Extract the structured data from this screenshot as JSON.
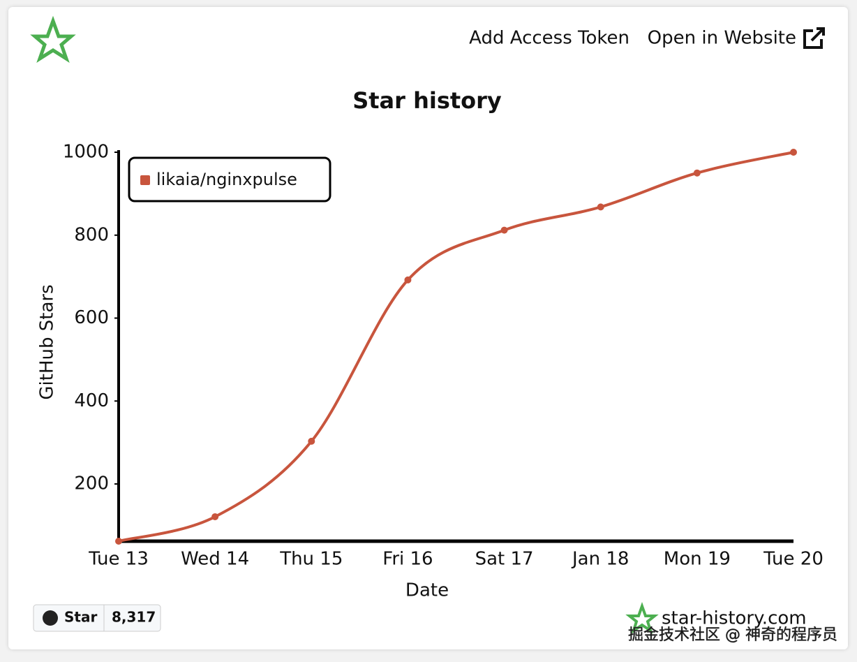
{
  "header": {
    "actions": [
      "Add Access Token",
      "Open in Website"
    ]
  },
  "chart_data": {
    "type": "line",
    "title": "Star history",
    "x_label": "Date",
    "y_label": "GitHub Stars",
    "categories": [
      "Tue 13",
      "Wed 14",
      "Thu 15",
      "Fri 16",
      "Sat 17",
      "Jan 18",
      "Mon 19",
      "Tue 20"
    ],
    "series": [
      {
        "name": "likaia/nginxpulse",
        "color": "#c8553d",
        "values": [
          62,
          121,
          303,
          692,
          812,
          868,
          950,
          1000
        ]
      }
    ],
    "ylim": [
      62,
      1000
    ],
    "yticks": [
      200,
      400,
      600,
      800,
      1000
    ],
    "grid": false,
    "legend": "top-left"
  },
  "footer": {
    "star_button": "Star",
    "star_count": "8,317",
    "site": "star-history.com",
    "watermark": "掘金技术社区 @ 神奇的程序员"
  }
}
